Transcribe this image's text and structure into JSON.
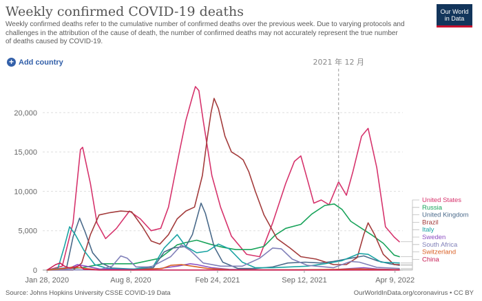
{
  "header": {
    "title": "Weekly confirmed COVID-19 deaths",
    "subtitle": "Weekly confirmed deaths refer to the cumulative number of confirmed deaths over the previous week. Due to varying protocols and challenges in the attribution of the cause of death, the number of confirmed deaths may not accurately represent the true number of deaths caused by COVID-19.",
    "logo_line1": "Our World",
    "logo_line2": "in Data"
  },
  "controls": {
    "add_country_label": "Add country"
  },
  "footer": {
    "source": "Source: Johns Hopkins University CSSE COVID-19 Data",
    "credit": "OurWorldInData.org/coronavirus • CC BY"
  },
  "chart_data": {
    "type": "line",
    "title": "Weekly confirmed COVID-19 deaths",
    "xlabel": "",
    "ylabel": "",
    "ylim": [
      0,
      24000
    ],
    "xlim": [
      -10,
      820
    ],
    "x_unit": "days since 2020-01-28",
    "x_ticks": [
      {
        "value": 0,
        "label": "Jan 28, 2020"
      },
      {
        "value": 193,
        "label": "Aug 8, 2020"
      },
      {
        "value": 393,
        "label": "Feb 24, 2021"
      },
      {
        "value": 593,
        "label": "Sep 12, 2021"
      },
      {
        "value": 802,
        "label": "Apr 9, 2022"
      }
    ],
    "y_ticks": [
      {
        "value": 0,
        "label": "0"
      },
      {
        "value": 5000,
        "label": "5,000"
      },
      {
        "value": 10000,
        "label": "10,000"
      },
      {
        "value": 15000,
        "label": "15,000"
      },
      {
        "value": 20000,
        "label": "20,000"
      }
    ],
    "hover_marker": {
      "x": 672,
      "label": "2021 年 12 月"
    },
    "series": [
      {
        "name": "United States",
        "color": "#d6336c",
        "points": [
          [
            0,
            0
          ],
          [
            35,
            500
          ],
          [
            60,
            6000
          ],
          [
            77,
            15300
          ],
          [
            82,
            15600
          ],
          [
            100,
            11000
          ],
          [
            115,
            6000
          ],
          [
            135,
            4000
          ],
          [
            160,
            5300
          ],
          [
            190,
            7500
          ],
          [
            215,
            6500
          ],
          [
            240,
            5000
          ],
          [
            262,
            5300
          ],
          [
            280,
            8000
          ],
          [
            305,
            15000
          ],
          [
            320,
            19000
          ],
          [
            335,
            22000
          ],
          [
            342,
            23300
          ],
          [
            350,
            22800
          ],
          [
            360,
            19000
          ],
          [
            380,
            12000
          ],
          [
            400,
            8000
          ],
          [
            425,
            4300
          ],
          [
            460,
            2000
          ],
          [
            490,
            1700
          ],
          [
            520,
            6000
          ],
          [
            550,
            11000
          ],
          [
            570,
            13800
          ],
          [
            585,
            14500
          ],
          [
            600,
            11500
          ],
          [
            615,
            8500
          ],
          [
            632,
            8900
          ],
          [
            650,
            8300
          ],
          [
            672,
            11200
          ],
          [
            690,
            9500
          ],
          [
            705,
            12500
          ],
          [
            725,
            17000
          ],
          [
            740,
            18000
          ],
          [
            760,
            13000
          ],
          [
            780,
            5500
          ],
          [
            800,
            4200
          ],
          [
            812,
            3600
          ]
        ]
      },
      {
        "name": "Russia",
        "color": "#18a35a",
        "points": [
          [
            0,
            0
          ],
          [
            80,
            300
          ],
          [
            130,
            800
          ],
          [
            200,
            800
          ],
          [
            260,
            1500
          ],
          [
            300,
            3200
          ],
          [
            320,
            3500
          ],
          [
            345,
            3800
          ],
          [
            375,
            3300
          ],
          [
            405,
            2900
          ],
          [
            435,
            2600
          ],
          [
            470,
            2600
          ],
          [
            500,
            3000
          ],
          [
            525,
            4400
          ],
          [
            550,
            5300
          ],
          [
            585,
            5800
          ],
          [
            610,
            7100
          ],
          [
            640,
            8200
          ],
          [
            662,
            8400
          ],
          [
            680,
            7700
          ],
          [
            700,
            6200
          ],
          [
            725,
            5300
          ],
          [
            750,
            4400
          ],
          [
            775,
            3400
          ],
          [
            800,
            1900
          ],
          [
            812,
            1700
          ]
        ]
      },
      {
        "name": "United Kingdom",
        "color": "#4a6a8a",
        "points": [
          [
            0,
            0
          ],
          [
            45,
            300
          ],
          [
            60,
            4200
          ],
          [
            75,
            6600
          ],
          [
            88,
            4800
          ],
          [
            105,
            2200
          ],
          [
            125,
            900
          ],
          [
            150,
            250
          ],
          [
            200,
            120
          ],
          [
            245,
            300
          ],
          [
            270,
            2300
          ],
          [
            290,
            2800
          ],
          [
            320,
            3000
          ],
          [
            335,
            4500
          ],
          [
            345,
            6500
          ],
          [
            355,
            8500
          ],
          [
            365,
            7200
          ],
          [
            385,
            3000
          ],
          [
            405,
            1000
          ],
          [
            440,
            200
          ],
          [
            480,
            200
          ],
          [
            520,
            400
          ],
          [
            555,
            900
          ],
          [
            595,
            1000
          ],
          [
            630,
            900
          ],
          [
            660,
            1100
          ],
          [
            700,
            1500
          ],
          [
            730,
            1800
          ],
          [
            760,
            1200
          ],
          [
            790,
            800
          ],
          [
            812,
            600
          ]
        ]
      },
      {
        "name": "Brazil",
        "color": "#a33b3b",
        "points": [
          [
            0,
            0
          ],
          [
            60,
            0
          ],
          [
            80,
            900
          ],
          [
            100,
            4500
          ],
          [
            120,
            7000
          ],
          [
            145,
            7300
          ],
          [
            170,
            7500
          ],
          [
            195,
            7400
          ],
          [
            220,
            5500
          ],
          [
            240,
            3700
          ],
          [
            260,
            3300
          ],
          [
            280,
            4500
          ],
          [
            300,
            6500
          ],
          [
            320,
            7500
          ],
          [
            340,
            8000
          ],
          [
            358,
            12000
          ],
          [
            370,
            17000
          ],
          [
            378,
            20000
          ],
          [
            385,
            21800
          ],
          [
            395,
            20500
          ],
          [
            410,
            17000
          ],
          [
            425,
            15000
          ],
          [
            440,
            14500
          ],
          [
            452,
            14000
          ],
          [
            465,
            12500
          ],
          [
            480,
            10000
          ],
          [
            500,
            7000
          ],
          [
            530,
            4000
          ],
          [
            560,
            2800
          ],
          [
            585,
            1700
          ],
          [
            620,
            1400
          ],
          [
            660,
            700
          ],
          [
            690,
            700
          ],
          [
            715,
            1600
          ],
          [
            730,
            4500
          ],
          [
            740,
            6000
          ],
          [
            755,
            4500
          ],
          [
            775,
            2000
          ],
          [
            800,
            700
          ],
          [
            812,
            700
          ]
        ]
      },
      {
        "name": "Italy",
        "color": "#1aa3a3",
        "points": [
          [
            0,
            0
          ],
          [
            25,
            200
          ],
          [
            40,
            3000
          ],
          [
            52,
            5500
          ],
          [
            65,
            4500
          ],
          [
            85,
            2500
          ],
          [
            110,
            700
          ],
          [
            140,
            200
          ],
          [
            200,
            120
          ],
          [
            245,
            500
          ],
          [
            270,
            2800
          ],
          [
            300,
            4500
          ],
          [
            320,
            3000
          ],
          [
            345,
            2200
          ],
          [
            370,
            2400
          ],
          [
            395,
            3300
          ],
          [
            420,
            2700
          ],
          [
            450,
            1000
          ],
          [
            480,
            300
          ],
          [
            520,
            300
          ],
          [
            560,
            400
          ],
          [
            600,
            500
          ],
          [
            640,
            800
          ],
          [
            680,
            1200
          ],
          [
            720,
            2100
          ],
          [
            740,
            2000
          ],
          [
            770,
            1000
          ],
          [
            812,
            900
          ]
        ]
      },
      {
        "name": "Sweden",
        "color": "#8c4fc2",
        "points": [
          [
            0,
            0
          ],
          [
            50,
            200
          ],
          [
            70,
            700
          ],
          [
            90,
            500
          ],
          [
            120,
            150
          ],
          [
            200,
            50
          ],
          [
            260,
            200
          ],
          [
            300,
            500
          ],
          [
            330,
            800
          ],
          [
            345,
            700
          ],
          [
            380,
            300
          ],
          [
            420,
            100
          ],
          [
            500,
            30
          ],
          [
            600,
            30
          ],
          [
            660,
            50
          ],
          [
            700,
            200
          ],
          [
            730,
            300
          ],
          [
            760,
            150
          ],
          [
            812,
            50
          ]
        ]
      },
      {
        "name": "South Africa",
        "color": "#7f7fb8",
        "points": [
          [
            0,
            0
          ],
          [
            120,
            50
          ],
          [
            150,
            500
          ],
          [
            170,
            1800
          ],
          [
            185,
            1500
          ],
          [
            205,
            400
          ],
          [
            240,
            400
          ],
          [
            285,
            1700
          ],
          [
            310,
            3200
          ],
          [
            330,
            2500
          ],
          [
            360,
            900
          ],
          [
            400,
            500
          ],
          [
            450,
            500
          ],
          [
            490,
            1500
          ],
          [
            520,
            2800
          ],
          [
            540,
            2700
          ],
          [
            565,
            1400
          ],
          [
            600,
            600
          ],
          [
            660,
            300
          ],
          [
            700,
            1100
          ],
          [
            720,
            1000
          ],
          [
            760,
            350
          ],
          [
            812,
            200
          ]
        ]
      },
      {
        "name": "Switzerland",
        "color": "#d95f24",
        "points": [
          [
            0,
            0
          ],
          [
            40,
            200
          ],
          [
            60,
            400
          ],
          [
            80,
            250
          ],
          [
            120,
            30
          ],
          [
            200,
            20
          ],
          [
            265,
            200
          ],
          [
            285,
            600
          ],
          [
            310,
            700
          ],
          [
            340,
            450
          ],
          [
            370,
            200
          ],
          [
            420,
            50
          ],
          [
            500,
            30
          ],
          [
            600,
            50
          ],
          [
            680,
            100
          ],
          [
            720,
            150
          ],
          [
            760,
            80
          ],
          [
            812,
            50
          ]
        ]
      },
      {
        "name": "China",
        "color": "#c71e55",
        "points": [
          [
            0,
            0
          ],
          [
            20,
            700
          ],
          [
            30,
            900
          ],
          [
            40,
            500
          ],
          [
            55,
            200
          ],
          [
            75,
            600
          ],
          [
            85,
            100
          ],
          [
            120,
            10
          ],
          [
            812,
            5
          ]
        ]
      }
    ]
  }
}
